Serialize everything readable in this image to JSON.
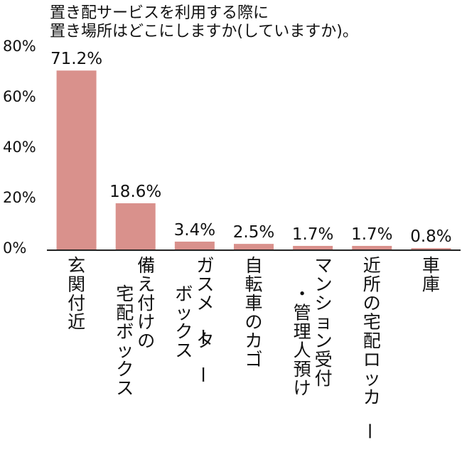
{
  "chart_data": {
    "type": "bar",
    "title_lines": [
      "置き配サービスを利用する際に",
      "置き場所はどこにしますか(していますか)。"
    ],
    "categories": [
      [
        "玄関付近"
      ],
      [
        "備え付けの",
        "宅配ボックス"
      ],
      [
        "ガスメーター",
        "ボックス"
      ],
      [
        "自転車のカゴ"
      ],
      [
        "マンション受付",
        "・管理人預け"
      ],
      [
        "近所の宅配ロッカー"
      ],
      [
        "車庫"
      ]
    ],
    "values": [
      71.2,
      18.6,
      3.4,
      2.5,
      1.7,
      1.7,
      0.8
    ],
    "value_labels": [
      "71.2%",
      "18.6%",
      "3.4%",
      "2.5%",
      "1.7%",
      "1.7%",
      "0.8%"
    ],
    "y_ticks": [
      0,
      20,
      40,
      60,
      80
    ],
    "y_tick_labels": [
      "0%",
      "20%",
      "40%",
      "60%",
      "80%"
    ],
    "ylim": [
      0,
      80
    ],
    "bar_color": "#d9918c",
    "axis_color": "#222222",
    "grid": false,
    "legend": "none"
  }
}
